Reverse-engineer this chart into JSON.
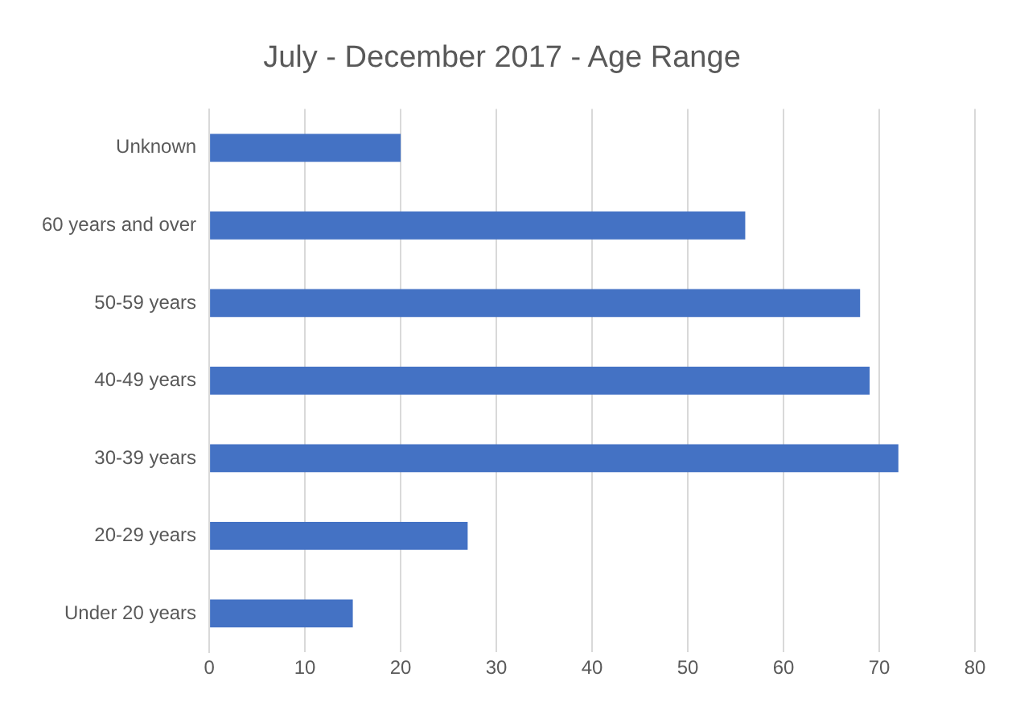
{
  "chart_data": {
    "type": "bar",
    "orientation": "horizontal",
    "title": "July - December 2017 - Age Range",
    "categories": [
      "Unknown",
      "60 years and over",
      "50-59 years",
      "40-49 years",
      "30-39 years",
      "20-29 years",
      "Under 20 years"
    ],
    "values": [
      20,
      56,
      68,
      69,
      72,
      27,
      15
    ],
    "color": "#4472c4",
    "xlim": [
      0,
      80
    ],
    "xticks": [
      0,
      10,
      20,
      30,
      40,
      50,
      60,
      70,
      80
    ],
    "grid": "x",
    "legend": false
  }
}
